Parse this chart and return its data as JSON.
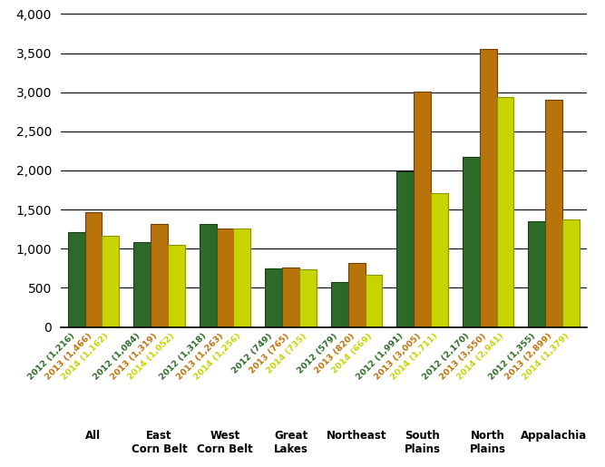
{
  "categories": [
    "All",
    "East\nCorn Belt",
    "West\nCorn Belt",
    "Great\nLakes",
    "Northeast",
    "South\nPlains",
    "North\nPlains",
    "Appalachia"
  ],
  "cat_labels": [
    "All",
    "East\nCorn Belt",
    "West\nCorn Belt",
    "Great\nLakes",
    "Northeast",
    "South\nPlains",
    "North\nPlains",
    "Appalachia"
  ],
  "years": [
    "2012",
    "2013",
    "2014"
  ],
  "values": [
    [
      1216,
      1466,
      1162
    ],
    [
      1084,
      1319,
      1052
    ],
    [
      1318,
      1263,
      1256
    ],
    [
      749,
      765,
      735
    ],
    [
      579,
      820,
      669
    ],
    [
      1991,
      3005,
      1711
    ],
    [
      2170,
      3550,
      2941
    ],
    [
      1355,
      2899,
      1379
    ]
  ],
  "tick_labels": [
    [
      "2012 (1,216)",
      "2013 (1,466)",
      "2014 (1,162)"
    ],
    [
      "2012 (1,084)",
      "2013 (1,319)",
      "2014 (1,052)"
    ],
    [
      "2012 (1,318)",
      "2013 (1,263)",
      "2014 (1,256)"
    ],
    [
      "2012 (749)",
      "2013 (765)",
      "2014 (735)"
    ],
    [
      "2012 (579)",
      "2013 (820)",
      "2014 (669)"
    ],
    [
      "2012 (1,991)",
      "2013 (3,005)",
      "2014 (1,711)"
    ],
    [
      "2012 (2,170)",
      "2013 (3,550)",
      "2014 (2,941)"
    ],
    [
      "2012 (1,355)",
      "2013 (2,899)",
      "2014 (1,379)"
    ]
  ],
  "bar_colors": [
    "#2d6a27",
    "#b8730a",
    "#c8d400"
  ],
  "bar_edge_colors": [
    "#1a3d16",
    "#6e4206",
    "#8a9400"
  ],
  "ylim": [
    0,
    4000
  ],
  "yticks": [
    0,
    500,
    1000,
    1500,
    2000,
    2500,
    3000,
    3500,
    4000
  ],
  "background_color": "#ffffff",
  "grid_color": "#000000",
  "tick_label_colors": [
    "#2d6a27",
    "#b8730a",
    "#c8d400"
  ],
  "label_fontsize": 6.8
}
